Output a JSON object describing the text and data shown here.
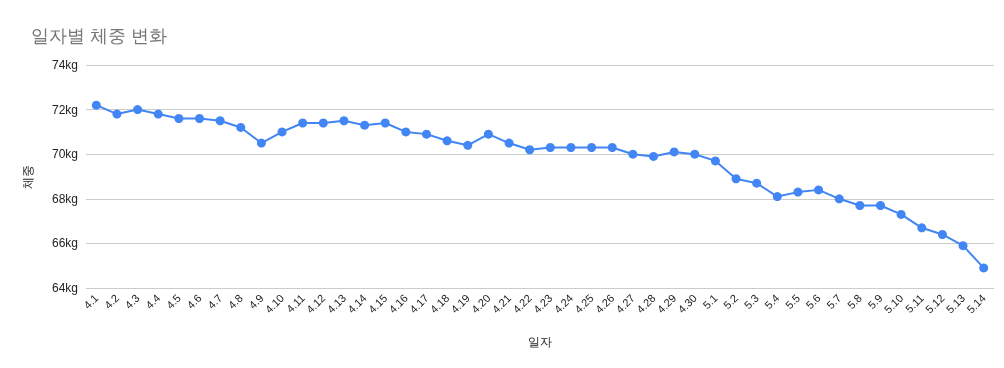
{
  "chart_data": {
    "type": "line",
    "title": "일자별 체중 변화",
    "xlabel": "일자",
    "ylabel": "체중",
    "categories": [
      "4.1",
      "4.2",
      "4.3",
      "4.4",
      "4.5",
      "4.6",
      "4.7",
      "4.8",
      "4.9",
      "4.10",
      "4.11",
      "4.12",
      "4.13",
      "4.14",
      "4.15",
      "4.16",
      "4.17",
      "4.18",
      "4.19",
      "4.20",
      "4.21",
      "4.22",
      "4.23",
      "4.24",
      "4.25",
      "4.26",
      "4.27",
      "4.28",
      "4.29",
      "4.30",
      "5.1",
      "5.2",
      "5.3",
      "5.4",
      "5.5",
      "5.6",
      "5.7",
      "5.8",
      "5.9",
      "5.10",
      "5.11",
      "5.12",
      "5.13",
      "5.14"
    ],
    "series": [
      {
        "color": "#4285f4",
        "values": [
          72.2,
          71.8,
          72.0,
          71.8,
          71.6,
          71.6,
          71.5,
          71.2,
          70.5,
          71.0,
          71.4,
          71.4,
          71.5,
          71.3,
          71.4,
          71.0,
          70.9,
          70.6,
          70.4,
          70.9,
          70.5,
          70.2,
          70.3,
          70.3,
          70.3,
          70.3,
          70.0,
          69.9,
          70.1,
          70.0,
          69.7,
          68.9,
          68.7,
          68.1,
          68.3,
          68.4,
          68.0,
          67.7,
          67.7,
          67.3,
          66.7,
          66.4,
          65.9,
          64.9
        ]
      }
    ],
    "ylim": [
      64,
      74
    ],
    "yticks": [
      {
        "value": 64,
        "label": "64kg"
      },
      {
        "value": 66,
        "label": "66kg"
      },
      {
        "value": 68,
        "label": "68kg"
      },
      {
        "value": 70,
        "label": "70kg"
      },
      {
        "value": 72,
        "label": "72kg"
      },
      {
        "value": 74,
        "label": "74kg"
      }
    ],
    "grid": "y",
    "marker": "circle",
    "line_style": "solid"
  }
}
